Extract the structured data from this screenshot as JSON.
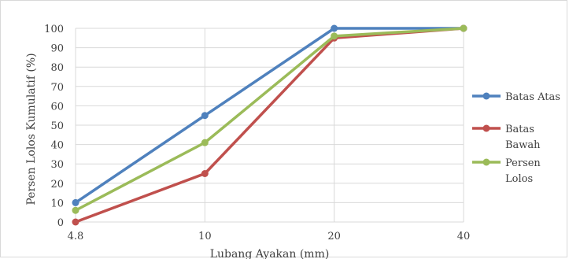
{
  "chart_data": {
    "type": "line",
    "title": "",
    "xlabel": "Lubang Ayakan (mm)",
    "ylabel": "Persen Lolos Kumulatif (%)",
    "categories": [
      "4.8",
      "10",
      "20",
      "40"
    ],
    "ylim": [
      0,
      100
    ],
    "y_ticks": [
      0,
      10,
      20,
      30,
      40,
      50,
      60,
      70,
      80,
      90,
      100
    ],
    "grid": true,
    "legend_position": "right",
    "series": [
      {
        "name": "Batas Atas",
        "name_lines": [
          "Batas Atas"
        ],
        "color": "#4f81bd",
        "values": [
          10,
          55,
          100,
          100
        ]
      },
      {
        "name": "Batas Bawah",
        "name_lines": [
          "Batas",
          "Bawah"
        ],
        "color": "#c0504d",
        "values": [
          0,
          25,
          95,
          100
        ]
      },
      {
        "name": "Persen Lolos",
        "name_lines": [
          "Persen",
          "Lolos"
        ],
        "color": "#9bbb59",
        "values": [
          6,
          41,
          96,
          100
        ]
      }
    ]
  }
}
